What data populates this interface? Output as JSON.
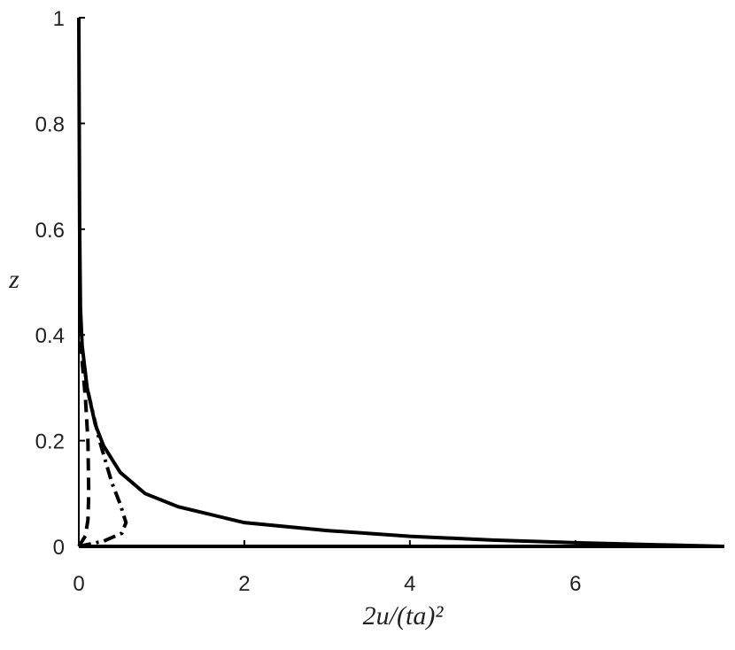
{
  "chart_data": {
    "type": "line",
    "xlabel": "2u/(ta)²",
    "ylabel": "z",
    "xlim": [
      0,
      7.8
    ],
    "ylim": [
      0,
      1
    ],
    "xticks": [
      0,
      2,
      4,
      6
    ],
    "yticks": [
      0,
      0.2,
      0.4,
      0.6,
      0.8,
      1
    ],
    "series": [
      {
        "color": "#000000",
        "dash": "solid",
        "x": [
          0,
          0.005,
          0.01,
          0.02,
          0.04,
          0.1,
          0.2,
          0.3,
          0.5,
          0.8,
          1.2,
          2,
          3,
          4,
          5,
          6,
          7,
          7.8
        ],
        "values": [
          1,
          0.8,
          0.6,
          0.45,
          0.38,
          0.3,
          0.23,
          0.19,
          0.14,
          0.1,
          0.075,
          0.045,
          0.03,
          0.019,
          0.012,
          0.007,
          0.003,
          0
        ]
      },
      {
        "color": "#000000",
        "dash": "dashed",
        "x": [
          0,
          0.08,
          0.11,
          0.12,
          0.11,
          0.08,
          0.04,
          0.01
        ],
        "values": [
          0,
          0.02,
          0.05,
          0.1,
          0.2,
          0.28,
          0.35,
          0.42
        ]
      },
      {
        "color": "#000000",
        "dash": "dashdot",
        "x": [
          0,
          0.3,
          0.52,
          0.57,
          0.5,
          0.4,
          0.25,
          0.1,
          0.02
        ],
        "values": [
          0,
          0.01,
          0.025,
          0.045,
          0.08,
          0.12,
          0.2,
          0.3,
          0.4
        ]
      }
    ]
  }
}
